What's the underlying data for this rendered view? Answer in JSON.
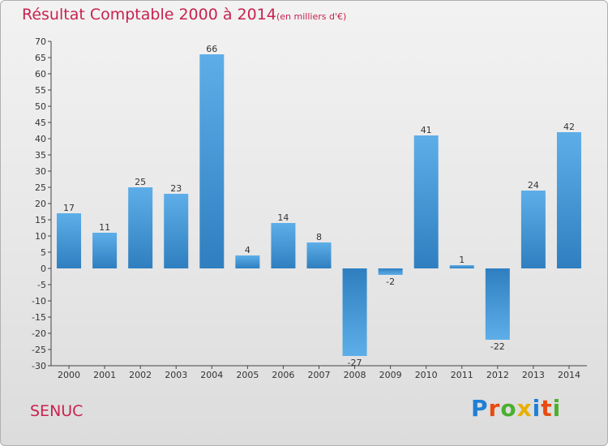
{
  "title": "Résultat Comptable 2000 à 2014",
  "subtitle": "(en milliers d'€)",
  "place": "SENUC",
  "logo": {
    "text": "Proxiti",
    "colors": [
      "#1f7fd4",
      "#e84a10",
      "#4caf2f",
      "#e8b000",
      "#1f7fd4",
      "#e84a10",
      "#4caf2f"
    ]
  },
  "chart_data": {
    "type": "bar",
    "title": "Résultat Comptable 2000 à 2014",
    "subtitle": "(en milliers d'€)",
    "categories": [
      "2000",
      "2001",
      "2002",
      "2003",
      "2004",
      "2005",
      "2006",
      "2007",
      "2008",
      "2009",
      "2010",
      "2011",
      "2012",
      "2013",
      "2014"
    ],
    "values": [
      17,
      11,
      25,
      23,
      66,
      4,
      14,
      8,
      -27,
      -2,
      41,
      1,
      -22,
      24,
      42
    ],
    "data_labels": [
      "17",
      "11",
      "25",
      "23",
      "66",
      "4",
      "14",
      "8",
      "-27",
      "-2",
      "41",
      "1",
      "-22",
      "24",
      "42"
    ],
    "ylim": [
      -30,
      70
    ],
    "yticks": [
      70,
      65,
      60,
      55,
      50,
      45,
      40,
      35,
      30,
      25,
      20,
      15,
      10,
      5,
      0,
      -5,
      -10,
      -15,
      -20,
      -25,
      -30
    ],
    "ytick_labels": [
      "70",
      "65",
      "60",
      "55",
      "50",
      "45",
      "40",
      "35",
      "30",
      "25",
      "20",
      "15",
      "10",
      "5",
      "0",
      "-5",
      "-10",
      "-15",
      "-20",
      "-25",
      "-30"
    ],
    "xlabel": "",
    "ylabel": "",
    "grid": false,
    "bar_color_light": "#5daee8",
    "bar_color_dark": "#2f7fc0"
  }
}
